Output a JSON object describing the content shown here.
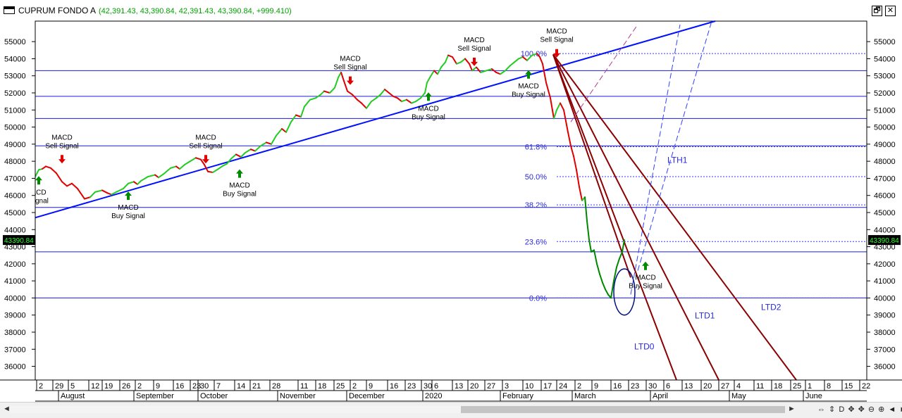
{
  "window": {
    "title": "CUPRUM FONDO A",
    "values": "(42,391.43, 43,390.84, 42,391.43, 43,390.84, +999.410)",
    "restore_icon": "restore-window-icon",
    "close_icon": "close-icon",
    "restore_glyph": "🗗",
    "close_glyph": "✕"
  },
  "chart_data": {
    "type": "line",
    "ylim": [
      35200,
      56200
    ],
    "y_ticks": [
      36000,
      37000,
      38000,
      39000,
      40000,
      41000,
      42000,
      43000,
      44000,
      45000,
      46000,
      47000,
      48000,
      49000,
      50000,
      51000,
      52000,
      53000,
      54000,
      55000
    ],
    "y_tick_labels": [
      "36000",
      "37000",
      "38000",
      "39000",
      "40000",
      "41000",
      "42000",
      "43000",
      "44000",
      "45000",
      "46000",
      "47000",
      "48000",
      "49000",
      "50000",
      "51000",
      "52000",
      "53000",
      "54000",
      "55000"
    ],
    "last_price_label": "43390.84",
    "last_price": 43390.84,
    "price_path": [
      [
        0,
        47100,
        "green"
      ],
      [
        5,
        47500,
        "green"
      ],
      [
        10,
        47550,
        "green"
      ],
      [
        15,
        47700,
        "red"
      ],
      [
        22,
        47600,
        "red"
      ],
      [
        30,
        47300,
        "red"
      ],
      [
        38,
        46800,
        "red"
      ],
      [
        45,
        46550,
        "red"
      ],
      [
        52,
        46700,
        "red"
      ],
      [
        60,
        46400,
        "red"
      ],
      [
        70,
        45800,
        "red"
      ],
      [
        78,
        45900,
        "red"
      ],
      [
        85,
        46200,
        "green"
      ],
      [
        95,
        46300,
        "green"
      ],
      [
        102,
        46150,
        "red"
      ],
      [
        108,
        46050,
        "red"
      ],
      [
        115,
        46200,
        "green"
      ],
      [
        125,
        46400,
        "green"
      ],
      [
        132,
        46700,
        "green"
      ],
      [
        140,
        46800,
        "green"
      ],
      [
        145,
        46650,
        "red"
      ],
      [
        150,
        46850,
        "green"
      ],
      [
        160,
        47100,
        "green"
      ],
      [
        170,
        47200,
        "green"
      ],
      [
        175,
        47050,
        "red"
      ],
      [
        182,
        47250,
        "green"
      ],
      [
        192,
        47600,
        "green"
      ],
      [
        200,
        47700,
        "green"
      ],
      [
        205,
        47550,
        "red"
      ],
      [
        212,
        47800,
        "green"
      ],
      [
        220,
        48000,
        "green"
      ],
      [
        228,
        48200,
        "green"
      ],
      [
        235,
        48100,
        "red"
      ],
      [
        240,
        47800,
        "red"
      ],
      [
        245,
        47400,
        "red"
      ],
      [
        252,
        47350,
        "red"
      ],
      [
        258,
        47500,
        "green"
      ],
      [
        265,
        47700,
        "green"
      ],
      [
        272,
        47850,
        "green"
      ],
      [
        278,
        48150,
        "green"
      ],
      [
        285,
        48400,
        "green"
      ],
      [
        292,
        48250,
        "red"
      ],
      [
        298,
        48500,
        "green"
      ],
      [
        306,
        48700,
        "green"
      ],
      [
        312,
        48600,
        "red"
      ],
      [
        320,
        48900,
        "green"
      ],
      [
        328,
        49100,
        "green"
      ],
      [
        335,
        49000,
        "red"
      ],
      [
        342,
        49500,
        "green"
      ],
      [
        350,
        49900,
        "green"
      ],
      [
        356,
        49700,
        "red"
      ],
      [
        363,
        50300,
        "green"
      ],
      [
        370,
        50700,
        "green"
      ],
      [
        377,
        50600,
        "red"
      ],
      [
        382,
        51200,
        "green"
      ],
      [
        390,
        51600,
        "green"
      ],
      [
        398,
        51700,
        "green"
      ],
      [
        405,
        51900,
        "green"
      ],
      [
        410,
        52100,
        "green"
      ],
      [
        418,
        52000,
        "red"
      ],
      [
        425,
        52300,
        "green"
      ],
      [
        430,
        52900,
        "green"
      ],
      [
        434,
        53200,
        "green"
      ],
      [
        438,
        52700,
        "red"
      ],
      [
        443,
        52100,
        "red"
      ],
      [
        450,
        51900,
        "red"
      ],
      [
        457,
        51600,
        "red"
      ],
      [
        463,
        51400,
        "red"
      ],
      [
        470,
        51100,
        "red"
      ],
      [
        477,
        51500,
        "green"
      ],
      [
        484,
        51700,
        "green"
      ],
      [
        490,
        51900,
        "green"
      ],
      [
        496,
        52200,
        "green"
      ],
      [
        502,
        52000,
        "red"
      ],
      [
        508,
        51800,
        "red"
      ],
      [
        514,
        51700,
        "red"
      ],
      [
        520,
        51500,
        "red"
      ],
      [
        527,
        51600,
        "green"
      ],
      [
        534,
        51400,
        "red"
      ],
      [
        540,
        51500,
        "green"
      ],
      [
        547,
        51700,
        "green"
      ],
      [
        553,
        52000,
        "green"
      ],
      [
        556,
        52600,
        "green"
      ],
      [
        560,
        52900,
        "green"
      ],
      [
        566,
        53300,
        "green"
      ],
      [
        571,
        53100,
        "red"
      ],
      [
        576,
        53500,
        "green"
      ],
      [
        582,
        53800,
        "green"
      ],
      [
        586,
        54200,
        "green"
      ],
      [
        592,
        54100,
        "red"
      ],
      [
        598,
        53700,
        "red"
      ],
      [
        604,
        53800,
        "green"
      ],
      [
        610,
        54000,
        "green"
      ],
      [
        616,
        53700,
        "red"
      ],
      [
        620,
        53300,
        "red"
      ],
      [
        626,
        53500,
        "green"
      ],
      [
        632,
        53200,
        "red"
      ],
      [
        640,
        53300,
        "green"
      ],
      [
        648,
        53400,
        "green"
      ],
      [
        654,
        53200,
        "red"
      ],
      [
        660,
        53100,
        "red"
      ],
      [
        667,
        53300,
        "green"
      ],
      [
        674,
        53600,
        "green"
      ],
      [
        680,
        53800,
        "green"
      ],
      [
        686,
        54000,
        "green"
      ],
      [
        692,
        54100,
        "green"
      ],
      [
        698,
        53900,
        "red"
      ],
      [
        705,
        54200,
        "green"
      ],
      [
        712,
        54300,
        "green"
      ],
      [
        716,
        54100,
        "red"
      ],
      [
        720,
        53700,
        "red"
      ],
      [
        725,
        52600,
        "red"
      ],
      [
        731,
        51700,
        "red"
      ],
      [
        736,
        50500,
        "red"
      ],
      [
        740,
        51000,
        "green"
      ],
      [
        745,
        51400,
        "green"
      ],
      [
        750,
        51000,
        "red"
      ],
      [
        756,
        49700,
        "red"
      ],
      [
        760,
        48900,
        "red"
      ],
      [
        764,
        48300,
        "red"
      ],
      [
        768,
        47500,
        "red"
      ],
      [
        772,
        46500,
        "red"
      ],
      [
        776,
        45700,
        "red"
      ],
      [
        780,
        45900,
        "green"
      ],
      [
        783,
        44500,
        "green"
      ],
      [
        786,
        43400,
        "green"
      ],
      [
        789,
        42700,
        "green"
      ],
      [
        793,
        42800,
        "green"
      ],
      [
        797,
        42000,
        "green"
      ],
      [
        801,
        41400,
        "green"
      ],
      [
        805,
        40900,
        "green"
      ],
      [
        809,
        40500,
        "green"
      ],
      [
        813,
        40200,
        "green"
      ],
      [
        817,
        40000,
        "green"
      ],
      [
        821,
        41000,
        "green"
      ],
      [
        825,
        41800,
        "green"
      ],
      [
        829,
        42300,
        "green"
      ],
      [
        833,
        42700,
        "green"
      ],
      [
        836,
        43390.84,
        "green"
      ]
    ],
    "fib_levels": [
      {
        "label": "100.0%",
        "value": 54300
      },
      {
        "label": "61.8%",
        "value": 48850
      },
      {
        "label": "50.0%",
        "value": 47100
      },
      {
        "label": "38.2%",
        "value": 45450
      },
      {
        "label": "23.6%",
        "value": 43300
      },
      {
        "label": "0.0%",
        "value": 40000
      }
    ],
    "support_lines": [
      53300,
      51800,
      50500,
      48900,
      45300,
      42700,
      40000
    ],
    "trend_lines": [
      {
        "name": "",
        "color": "#0010ff",
        "points": [
          [
            0,
            44700
          ],
          [
            965,
            56200
          ]
        ]
      },
      {
        "name": "LTD0",
        "color": "#8b0000",
        "points": [
          [
            735,
            54250
          ],
          [
            910,
            35200
          ]
        ]
      },
      {
        "name": "LTD1",
        "color": "#8b0000",
        "points": [
          [
            735,
            54250
          ],
          [
            970,
            35200
          ]
        ]
      },
      {
        "name": "LTD2",
        "color": "#8b0000",
        "points": [
          [
            735,
            54250
          ],
          [
            1080,
            35200
          ]
        ]
      },
      {
        "name": "",
        "color": "#8b0000",
        "points": [
          [
            735,
            54250
          ],
          [
            845,
            41200
          ]
        ]
      }
    ],
    "dashed_lines": [
      {
        "name": "LTH1",
        "color": "#3040ff",
        "points": [
          [
            845,
            40200
          ],
          [
            915,
            56000
          ]
        ]
      },
      {
        "name": "",
        "color": "#3040ff",
        "points": [
          [
            855,
            41600
          ],
          [
            960,
            56200
          ]
        ]
      },
      {
        "name": "",
        "color": "#b04090",
        "points": [
          [
            760,
            50300
          ],
          [
            855,
            56000
          ]
        ]
      }
    ],
    "line_labels": [
      {
        "text": "LTD0",
        "at": [
          850,
          37000
        ]
      },
      {
        "text": "LTD1",
        "at": [
          936,
          38800
        ]
      },
      {
        "text": "LTD2",
        "at": [
          1030,
          39300
        ]
      },
      {
        "text": "LTH1",
        "at": [
          897,
          47900
        ]
      }
    ],
    "signals": [
      {
        "kind": "buy",
        "at": [
          5,
          46800
        ],
        "lines": [
          "ACD",
          "Signal"
        ]
      },
      {
        "kind": "sell",
        "at": [
          38,
          48200
        ],
        "lines": [
          "MACD",
          "Sell Signal"
        ]
      },
      {
        "kind": "buy",
        "at": [
          132,
          45900
        ],
        "lines": [
          "MACD",
          "Buy Signal"
        ]
      },
      {
        "kind": "sell",
        "at": [
          242,
          48200
        ],
        "lines": [
          "MACD",
          "Sell Signal"
        ]
      },
      {
        "kind": "buy",
        "at": [
          290,
          47200
        ],
        "lines": [
          "MACD",
          "Buy Signal"
        ]
      },
      {
        "kind": "sell",
        "at": [
          447,
          52800
        ],
        "lines": [
          "MACD",
          "Sell Signal"
        ]
      },
      {
        "kind": "buy",
        "at": [
          558,
          51700
        ],
        "lines": [
          "MACD",
          "Buy Signal"
        ]
      },
      {
        "kind": "sell",
        "at": [
          623,
          53900
        ],
        "lines": [
          "MACD",
          "Sell Signal"
        ]
      },
      {
        "kind": "buy",
        "at": [
          700,
          53000
        ],
        "lines": [
          "MACD",
          "Buy Signal"
        ]
      },
      {
        "kind": "sell",
        "at": [
          740,
          54400
        ],
        "lines": [
          "MACD",
          "Sell Signal"
        ]
      },
      {
        "kind": "buy",
        "at": [
          866,
          41800
        ],
        "lines": [
          "MACD",
          "Buy Signal"
        ]
      }
    ],
    "ellipse": {
      "center": [
        836,
        40350
      ],
      "rx": 15,
      "ry": 1350
    },
    "x_ticks": [
      {
        "label": "2",
        "x": 2
      },
      {
        "label": "29",
        "x": 25
      },
      {
        "label": "5",
        "x": 47
      },
      {
        "label": "12",
        "x": 76
      },
      {
        "label": "19",
        "x": 95
      },
      {
        "label": "26",
        "x": 120
      },
      {
        "label": "2",
        "x": 142
      },
      {
        "label": "9",
        "x": 168
      },
      {
        "label": "16",
        "x": 196
      },
      {
        "label": "23",
        "x": 220
      },
      {
        "label": "30",
        "x": 231
      },
      {
        "label": "7",
        "x": 254
      },
      {
        "label": "14",
        "x": 283
      },
      {
        "label": "21",
        "x": 305
      },
      {
        "label": "28",
        "x": 333
      },
      {
        "label": "11",
        "x": 373
      },
      {
        "label": "18",
        "x": 398
      },
      {
        "label": "25",
        "x": 424
      },
      {
        "label": "2",
        "x": 447
      },
      {
        "label": "9",
        "x": 470
      },
      {
        "label": "16",
        "x": 500
      },
      {
        "label": "23",
        "x": 525
      },
      {
        "label": "30",
        "x": 548
      },
      {
        "label": "6",
        "x": 563
      },
      {
        "label": "13",
        "x": 592
      },
      {
        "label": "20",
        "x": 614
      },
      {
        "label": "27",
        "x": 638
      },
      {
        "label": "3",
        "x": 663
      },
      {
        "label": "10",
        "x": 692
      },
      {
        "label": "17",
        "x": 718
      },
      {
        "label": "24",
        "x": 740
      },
      {
        "label": "2",
        "x": 766
      },
      {
        "label": "9",
        "x": 790
      },
      {
        "label": "16",
        "x": 817
      },
      {
        "label": "23",
        "x": 842
      },
      {
        "label": "30",
        "x": 867
      },
      {
        "label": "6",
        "x": 892
      },
      {
        "label": "13",
        "x": 918
      },
      {
        "label": "20",
        "x": 945
      },
      {
        "label": "27",
        "x": 970
      },
      {
        "label": "4",
        "x": 992
      },
      {
        "label": "11",
        "x": 1020
      },
      {
        "label": "18",
        "x": 1045
      },
      {
        "label": "25",
        "x": 1072
      },
      {
        "label": "1",
        "x": 1093
      },
      {
        "label": "8",
        "x": 1120
      },
      {
        "label": "15",
        "x": 1145
      },
      {
        "label": "22",
        "x": 1170
      }
    ],
    "x_months": [
      {
        "label": "August",
        "x": 33
      },
      {
        "label": "September",
        "x": 140
      },
      {
        "label": "October",
        "x": 231
      },
      {
        "label": "November",
        "x": 344
      },
      {
        "label": "December",
        "x": 442
      },
      {
        "label": "2020",
        "x": 550
      },
      {
        "label": "February",
        "x": 660
      },
      {
        "label": "March",
        "x": 762
      },
      {
        "label": "April",
        "x": 873
      },
      {
        "label": "May",
        "x": 985
      },
      {
        "label": "June",
        "x": 1090
      }
    ]
  },
  "scrollbar": {
    "left_arrow": "◄",
    "right_arrow": "►",
    "tools": "⇔ ⇕ D ✥ ✥ ⊖ ⊕ ◄ ►"
  }
}
